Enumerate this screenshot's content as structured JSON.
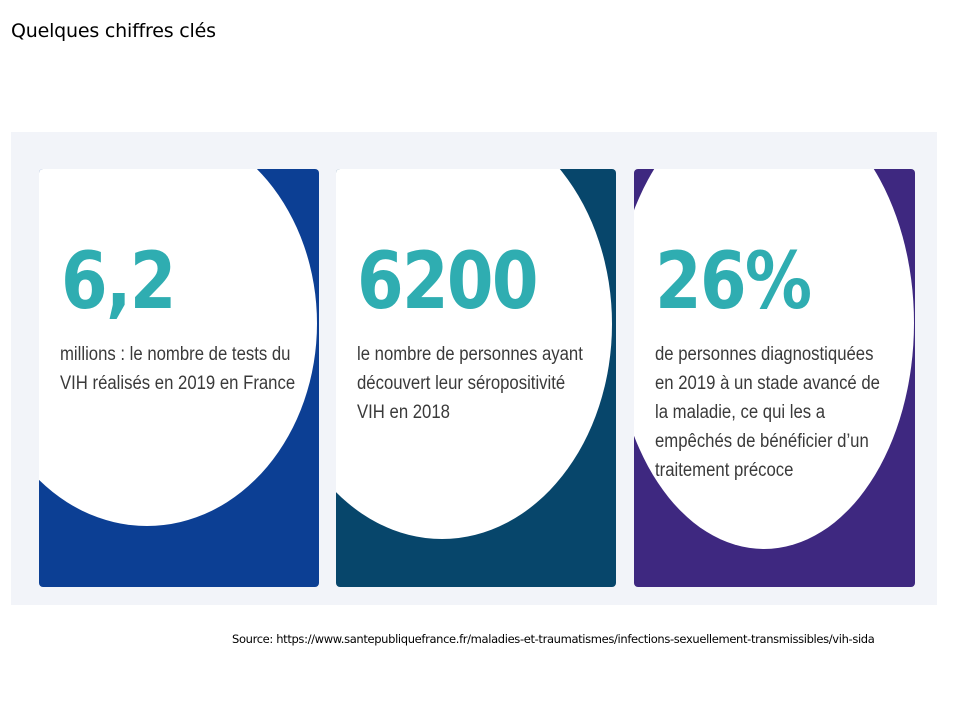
{
  "slide": {
    "title": "Quelques chiffres clés",
    "source": "Source: https://www.santepubliquefrance.fr/maladies-et-traumatismes/infections-sexuellement-transmissibles/vih-sida"
  },
  "cards": [
    {
      "value": "6,2",
      "description": "millions : le nombre de tests du VIH réalisés en 2019 en France",
      "background": "#0c3f94"
    },
    {
      "value": "6200",
      "description": "le nombre de personnes ayant découvert leur séropositivité VIH en 2018",
      "background": "#07466b"
    },
    {
      "value": "26%",
      "description": "de personnes diagnostiquées en 2019 à un stade avancé de la maladie, ce qui les a empêchés de bénéficier d’un traitement précoce",
      "background": "#3e2880"
    }
  ],
  "colors": {
    "stat_accent": "#2fadb1",
    "panel_background": "#f2f4f9"
  }
}
